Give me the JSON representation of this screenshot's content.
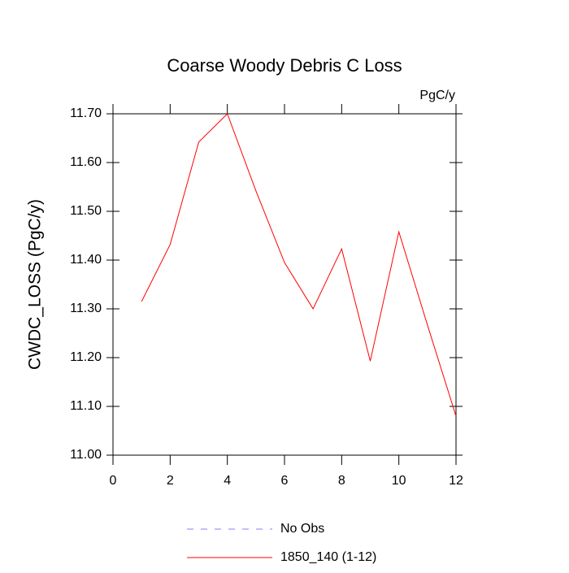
{
  "chart_data": {
    "type": "line",
    "title": "Coarse Woody Debris C Loss",
    "units": "PgC/y",
    "y_label": "CWDC_LOSS  (PgC/y)",
    "x": [
      1,
      2,
      3,
      4,
      5,
      6,
      7,
      8,
      9,
      10,
      11,
      12
    ],
    "series": [
      {
        "name": "No Obs",
        "color": "#8080ff",
        "dashed": true,
        "values": [
          null,
          null,
          null,
          null,
          null,
          null,
          null,
          null,
          null,
          null,
          null,
          null
        ]
      },
      {
        "name": "1850_140 (1-12)",
        "color": "#ff0000",
        "dashed": false,
        "values": [
          11.315,
          11.432,
          11.642,
          11.7,
          11.542,
          11.395,
          11.3,
          11.423,
          11.193,
          11.458,
          11.267,
          11.08
        ]
      }
    ],
    "xlim": [
      0,
      12
    ],
    "xticks": [
      0,
      2,
      4,
      6,
      8,
      10,
      12
    ],
    "ylim": [
      11.0,
      11.7
    ],
    "yticks": [
      {
        "value": 11.0,
        "label": "11.00"
      },
      {
        "value": 11.1,
        "label": "11.10"
      },
      {
        "value": 11.2,
        "label": "11.20"
      },
      {
        "value": 11.3,
        "label": "11.30"
      },
      {
        "value": 11.4,
        "label": "11.40"
      },
      {
        "value": 11.5,
        "label": "11.50"
      },
      {
        "value": 11.6,
        "label": "11.60"
      },
      {
        "value": 11.7,
        "label": "11.70"
      }
    ],
    "grid": false
  }
}
